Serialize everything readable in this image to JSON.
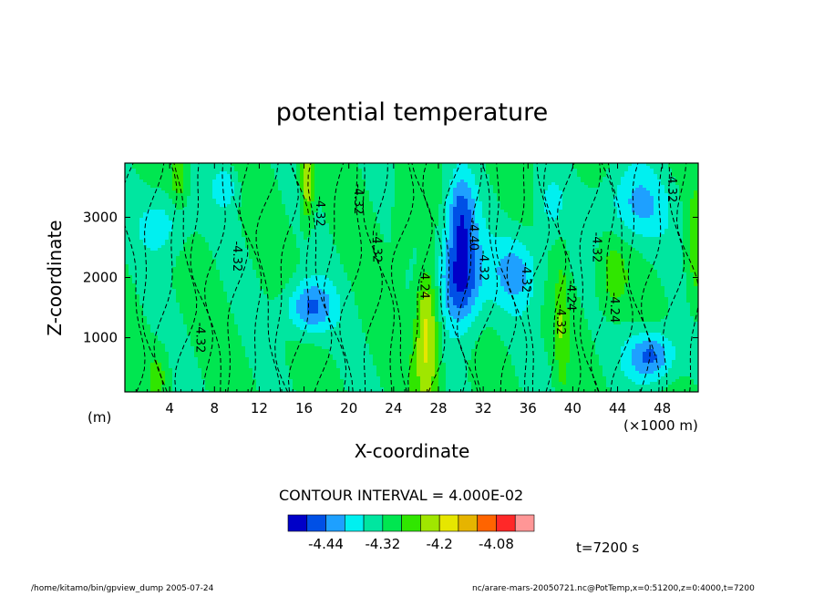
{
  "chart_data": {
    "type": "contour",
    "title": "potential temperature",
    "xlabel": "X-coordinate",
    "ylabel": "Z-coordinate",
    "x_unit": "(×1000 m)",
    "y_unit": "(m)",
    "xlim": [
      0,
      51.2
    ],
    "ylim": [
      100,
      3900
    ],
    "x_ticks": [
      4,
      8,
      12,
      16,
      20,
      24,
      28,
      32,
      36,
      40,
      44,
      48
    ],
    "y_ticks": [
      1000,
      2000,
      3000
    ],
    "contour_interval_text": "CONTOUR INTERVAL = 4.000E-02",
    "contour_labels": [
      "-4.32",
      "-4.32",
      "-4.32",
      "-4.32",
      "-4.40",
      "-4.32",
      "-4.32",
      "-4.32",
      "-4.24",
      "-4.32",
      "-4.24",
      "-4.24",
      "-4.32",
      "-4.32"
    ],
    "colorbar": {
      "colors": [
        "#0000c8",
        "#0050e6",
        "#1ea0ff",
        "#00f0f0",
        "#00e6a0",
        "#00e650",
        "#30e600",
        "#a0e600",
        "#e6e600",
        "#e6b400",
        "#ff6400",
        "#ff2828",
        "#ff9696"
      ],
      "tick_labels": [
        "-4.44",
        "-4.32",
        "-4.2",
        "-4.08"
      ]
    },
    "annotation": "t=7200 s"
  },
  "footer": {
    "left": "/home/kitamo/bin/gpview_dump  2005-07-24",
    "right": "nc/arare-mars-20050721.nc@PotTemp,x=0:51200,z=0:4000,t=7200"
  }
}
